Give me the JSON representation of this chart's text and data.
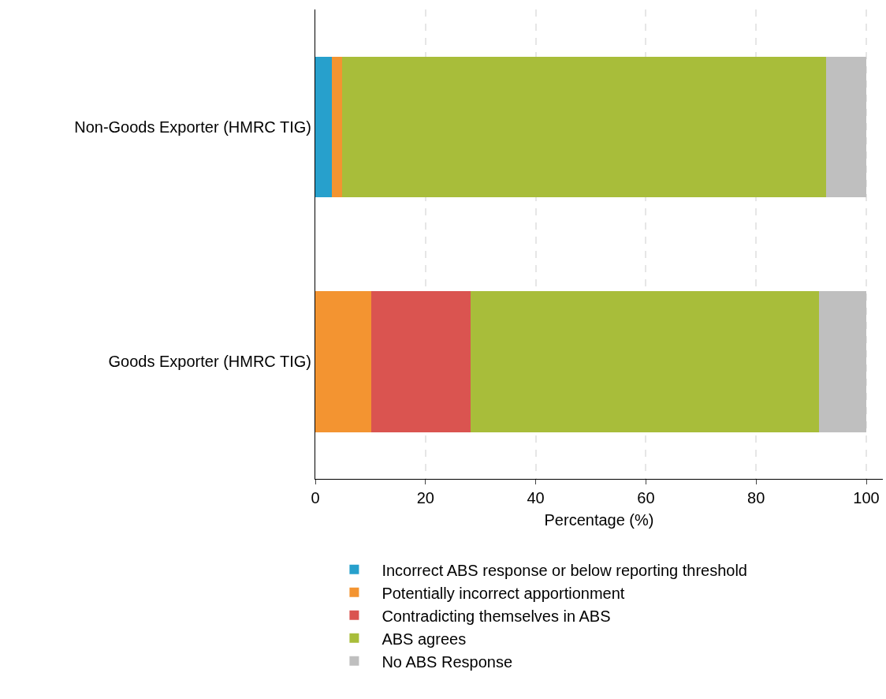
{
  "chart_data": {
    "type": "bar",
    "orientation": "horizontal",
    "stacked": true,
    "categories": [
      "Non-Goods Exporter (HMRC TIG)",
      "Goods Exporter (HMRC TIG)"
    ],
    "series": [
      {
        "name": "Incorrect ABS response or below reporting threshold",
        "color": "#27a0cc",
        "values": [
          3.0,
          0
        ]
      },
      {
        "name": "Potentially incorrect apportionment",
        "color": "#f39431",
        "values": [
          1.9,
          10.2
        ]
      },
      {
        "name": "Contradicting themselves in ABS",
        "color": "#da5450",
        "values": [
          0,
          18.0
        ]
      },
      {
        "name": "ABS agrees",
        "color": "#a8bd3a",
        "values": [
          87.8,
          63.2
        ]
      },
      {
        "name": "No ABS Response",
        "color": "#bfbfbf",
        "values": [
          7.3,
          8.6
        ]
      }
    ],
    "xlabel": "Percentage (%)",
    "xlim": [
      0,
      103
    ],
    "xticks": [
      0,
      20,
      40,
      60,
      80,
      100
    ],
    "grid": "x",
    "legend": "bottom"
  }
}
